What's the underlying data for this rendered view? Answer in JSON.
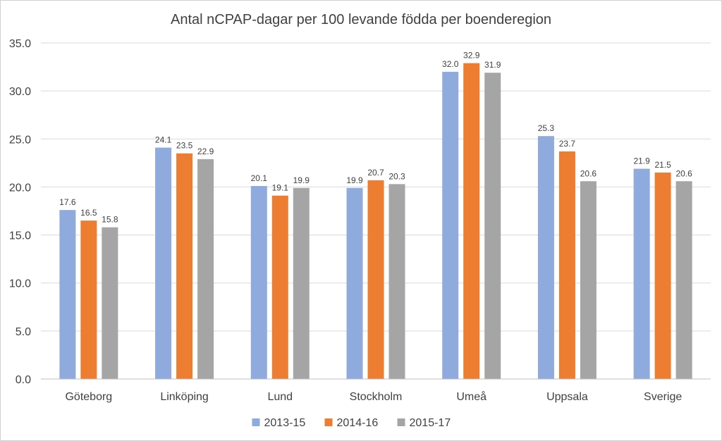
{
  "chart_data": {
    "type": "bar",
    "title": "Antal nCPAP-dagar per 100 levande födda per boenderegion",
    "xlabel": "",
    "ylabel": "",
    "ylim": [
      0,
      35
    ],
    "ytick_step": 5,
    "ytick_format": "fixed1",
    "grid": true,
    "legend_position": "bottom",
    "categories": [
      "Göteborg",
      "Linköping",
      "Lund",
      "Stockholm",
      "Umeå",
      "Uppsala",
      "Sverige"
    ],
    "series": [
      {
        "name": "2013-15",
        "color": "#8faadc",
        "values": [
          17.6,
          24.1,
          20.1,
          19.9,
          32.0,
          25.3,
          21.9
        ]
      },
      {
        "name": "2014-16",
        "color": "#ed7d31",
        "values": [
          16.5,
          23.5,
          19.1,
          20.7,
          32.9,
          23.7,
          21.5
        ]
      },
      {
        "name": "2015-17",
        "color": "#a5a5a5",
        "values": [
          15.8,
          22.9,
          19.9,
          20.3,
          31.9,
          20.6,
          20.6
        ]
      }
    ]
  }
}
